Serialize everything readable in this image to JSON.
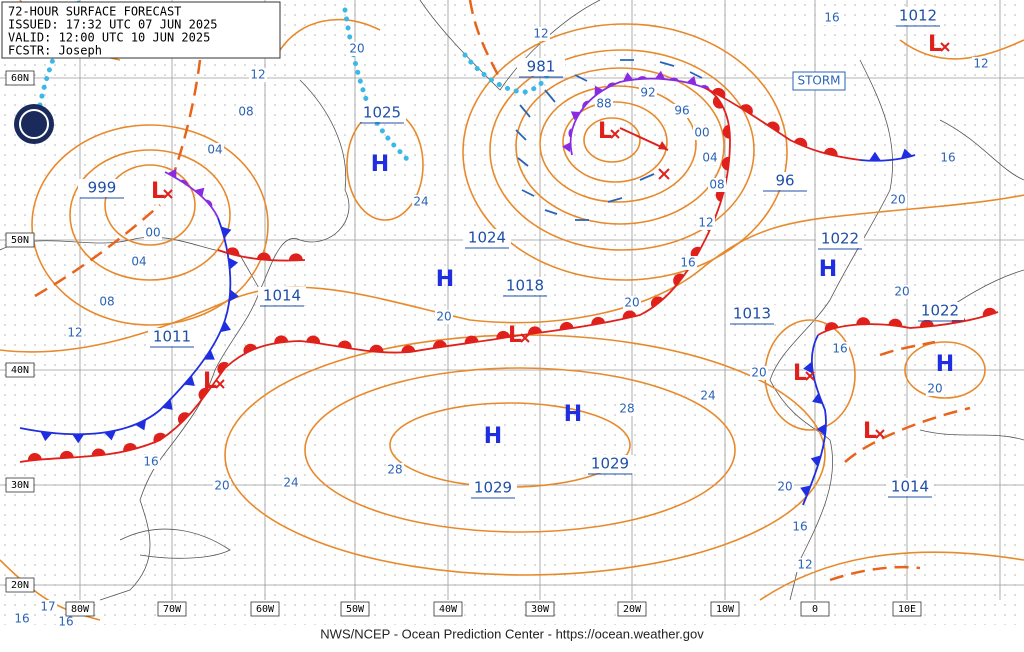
{
  "header": {
    "title": "72-HOUR SURFACE FORECAST",
    "issued": "ISSUED: 17:32 UTC 07 JUN 2025",
    "valid": "VALID: 12:00 UTC 10 JUN 2025",
    "forecaster": "FCSTR: Joseph"
  },
  "storm_label": "STORM",
  "symbols": [
    "H",
    "H",
    "H",
    "H",
    "H",
    "H",
    "L",
    "L",
    "L",
    "L",
    "L",
    "L",
    "L"
  ],
  "pressure_labels": [
    "999",
    "1025",
    "981",
    "1012",
    "1024",
    "1018",
    "1014",
    "1011",
    "1022",
    "1013",
    "1022",
    "1029",
    "1029",
    "1014",
    "96"
  ],
  "isobar_labels": [
    "12",
    "08",
    "04",
    "00",
    "04",
    "08",
    "12",
    "20",
    "24",
    "12",
    "16",
    "12",
    "88",
    "92",
    "96",
    "00",
    "04",
    "08",
    "12",
    "16",
    "20",
    "20",
    "16",
    "20",
    "28",
    "24",
    "28",
    "20",
    "24",
    "16",
    "20",
    "16",
    "12",
    "20",
    "20",
    "20",
    "16",
    "17",
    "16",
    "16"
  ],
  "lat_labels": [
    "60N",
    "50N",
    "40N",
    "30N",
    "20N"
  ],
  "lon_labels": [
    "80W",
    "70W",
    "60W",
    "50W",
    "40W",
    "30W",
    "20W",
    "10W",
    "0",
    "10E"
  ],
  "footer": "NWS/NCEP - Ocean Prediction Center - https://ocean.weather.gov"
}
